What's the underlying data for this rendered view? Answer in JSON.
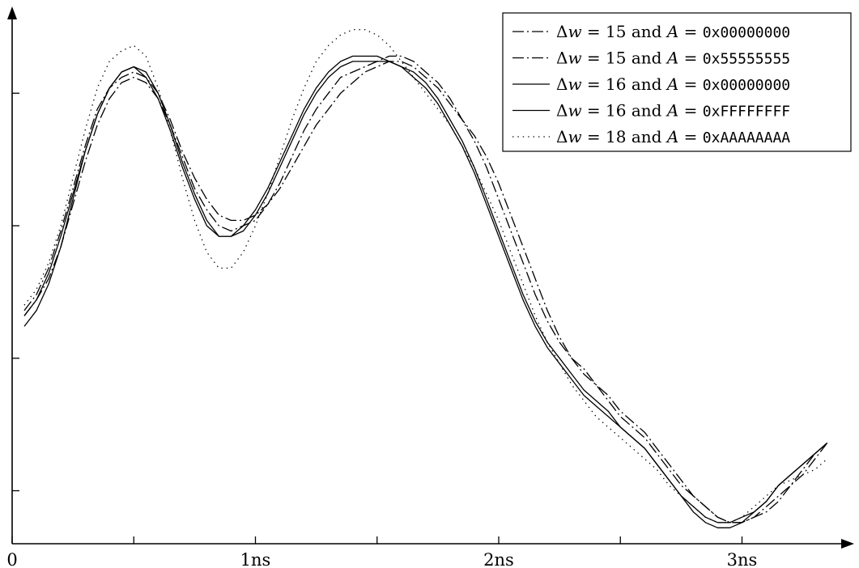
{
  "chart_data": {
    "type": "line",
    "title": "",
    "xlabel": "",
    "ylabel": "",
    "xlim": [
      0,
      3.4
    ],
    "ylim": [
      0,
      1
    ],
    "grid": false,
    "legend_position": "top-right",
    "x_ticks": [
      {
        "value": 0,
        "label": "0"
      },
      {
        "value": 1,
        "label": "1ns"
      },
      {
        "value": 2,
        "label": "2ns"
      },
      {
        "value": 3,
        "label": "3ns"
      }
    ],
    "y_ticks": [
      0.1,
      0.35,
      0.6,
      0.85
    ],
    "series": [
      {
        "name": "Δw = 15 and A = 0x00000000",
        "name_parts": {
          "delta": "Δ",
          "w": "w",
          "eq1": " = 15 and ",
          "a": "A",
          "eq2": " = ",
          "value": "0x00000000"
        },
        "style": "dashdot",
        "x": [
          0.05,
          0.1,
          0.15,
          0.2,
          0.25,
          0.3,
          0.35,
          0.4,
          0.45,
          0.5,
          0.55,
          0.6,
          0.65,
          0.7,
          0.75,
          0.8,
          0.85,
          0.9,
          0.95,
          1.0,
          1.05,
          1.1,
          1.15,
          1.2,
          1.25,
          1.3,
          1.35,
          1.4,
          1.45,
          1.5,
          1.55,
          1.6,
          1.65,
          1.7,
          1.75,
          1.8,
          1.85,
          1.9,
          1.95,
          2.0,
          2.05,
          2.1,
          2.15,
          2.2,
          2.25,
          2.3,
          2.35,
          2.4,
          2.45,
          2.5,
          2.55,
          2.6,
          2.65,
          2.7,
          2.75,
          2.8,
          2.85,
          2.9,
          2.95,
          3.0,
          3.05,
          3.1,
          3.15,
          3.2,
          3.25,
          3.3,
          3.35
        ],
        "y": [
          0.44,
          0.47,
          0.52,
          0.59,
          0.67,
          0.75,
          0.82,
          0.86,
          0.88,
          0.89,
          0.88,
          0.85,
          0.8,
          0.74,
          0.69,
          0.65,
          0.62,
          0.61,
          0.61,
          0.62,
          0.64,
          0.67,
          0.71,
          0.75,
          0.79,
          0.82,
          0.85,
          0.87,
          0.89,
          0.9,
          0.91,
          0.91,
          0.9,
          0.88,
          0.86,
          0.83,
          0.8,
          0.77,
          0.73,
          0.68,
          0.62,
          0.56,
          0.5,
          0.44,
          0.39,
          0.35,
          0.33,
          0.3,
          0.28,
          0.25,
          0.23,
          0.21,
          0.18,
          0.15,
          0.12,
          0.09,
          0.07,
          0.05,
          0.04,
          0.04,
          0.05,
          0.06,
          0.08,
          0.11,
          0.14,
          0.17,
          0.19
        ]
      },
      {
        "name": "Δw = 15 and A = 0x55555555",
        "name_parts": {
          "delta": "Δ",
          "w": "w",
          "eq1": " = 15 and ",
          "a": "A",
          "eq2": " = ",
          "value": "0x55555555"
        },
        "style": "dashdot",
        "x": [
          0.05,
          0.1,
          0.15,
          0.2,
          0.25,
          0.3,
          0.35,
          0.4,
          0.45,
          0.5,
          0.55,
          0.6,
          0.65,
          0.7,
          0.75,
          0.8,
          0.85,
          0.9,
          0.95,
          1.0,
          1.05,
          1.1,
          1.15,
          1.2,
          1.25,
          1.3,
          1.35,
          1.4,
          1.45,
          1.5,
          1.55,
          1.6,
          1.65,
          1.7,
          1.75,
          1.8,
          1.85,
          1.9,
          1.95,
          2.0,
          2.05,
          2.1,
          2.15,
          2.2,
          2.25,
          2.3,
          2.35,
          2.4,
          2.45,
          2.5,
          2.55,
          2.6,
          2.65,
          2.7,
          2.75,
          2.8,
          2.85,
          2.9,
          2.95,
          3.0,
          3.05,
          3.1,
          3.15,
          3.2,
          3.25,
          3.3,
          3.35
        ],
        "y": [
          0.43,
          0.46,
          0.5,
          0.56,
          0.64,
          0.72,
          0.79,
          0.84,
          0.87,
          0.88,
          0.87,
          0.84,
          0.79,
          0.73,
          0.67,
          0.63,
          0.6,
          0.59,
          0.6,
          0.61,
          0.64,
          0.68,
          0.73,
          0.78,
          0.82,
          0.85,
          0.88,
          0.89,
          0.9,
          0.91,
          0.92,
          0.92,
          0.91,
          0.89,
          0.87,
          0.84,
          0.8,
          0.76,
          0.71,
          0.65,
          0.59,
          0.53,
          0.47,
          0.42,
          0.38,
          0.35,
          0.32,
          0.3,
          0.27,
          0.24,
          0.22,
          0.2,
          0.17,
          0.14,
          0.11,
          0.09,
          0.07,
          0.05,
          0.04,
          0.04,
          0.05,
          0.07,
          0.09,
          0.11,
          0.13,
          0.16,
          0.19
        ]
      },
      {
        "name": "Δw = 16 and A = 0x00000000",
        "name_parts": {
          "delta": "Δ",
          "w": "w",
          "eq1": " = 16 and ",
          "a": "A",
          "eq2": " = ",
          "value": "0x00000000"
        },
        "style": "solid",
        "x": [
          0.05,
          0.1,
          0.15,
          0.2,
          0.25,
          0.3,
          0.35,
          0.4,
          0.45,
          0.5,
          0.55,
          0.6,
          0.65,
          0.7,
          0.75,
          0.8,
          0.85,
          0.9,
          0.95,
          1.0,
          1.05,
          1.1,
          1.15,
          1.2,
          1.25,
          1.3,
          1.35,
          1.4,
          1.45,
          1.5,
          1.55,
          1.6,
          1.65,
          1.7,
          1.75,
          1.8,
          1.85,
          1.9,
          1.95,
          2.0,
          2.05,
          2.1,
          2.15,
          2.2,
          2.25,
          2.3,
          2.35,
          2.4,
          2.45,
          2.5,
          2.55,
          2.6,
          2.65,
          2.7,
          2.75,
          2.8,
          2.85,
          2.9,
          2.95,
          3.0,
          3.05,
          3.1,
          3.15,
          3.2,
          3.25,
          3.3,
          3.35
        ],
        "y": [
          0.43,
          0.46,
          0.51,
          0.58,
          0.66,
          0.74,
          0.81,
          0.86,
          0.89,
          0.9,
          0.89,
          0.85,
          0.79,
          0.72,
          0.66,
          0.61,
          0.58,
          0.58,
          0.59,
          0.62,
          0.66,
          0.71,
          0.76,
          0.81,
          0.85,
          0.88,
          0.9,
          0.91,
          0.91,
          0.91,
          0.91,
          0.9,
          0.89,
          0.87,
          0.84,
          0.8,
          0.76,
          0.71,
          0.65,
          0.59,
          0.53,
          0.47,
          0.42,
          0.38,
          0.35,
          0.32,
          0.29,
          0.27,
          0.25,
          0.22,
          0.2,
          0.18,
          0.15,
          0.12,
          0.09,
          0.07,
          0.05,
          0.04,
          0.04,
          0.05,
          0.06,
          0.08,
          0.11,
          0.13,
          0.15,
          0.17,
          0.19
        ]
      },
      {
        "name": "Δw = 16 and A = 0xFFFFFFFF",
        "name_parts": {
          "delta": "Δ",
          "w": "w",
          "eq1": " = 16 and ",
          "a": "A",
          "eq2": " = ",
          "value": "0xFFFFFFFF"
        },
        "style": "solid",
        "x": [
          0.05,
          0.1,
          0.15,
          0.2,
          0.25,
          0.3,
          0.35,
          0.4,
          0.45,
          0.5,
          0.55,
          0.6,
          0.65,
          0.7,
          0.75,
          0.8,
          0.85,
          0.9,
          0.95,
          1.0,
          1.05,
          1.1,
          1.15,
          1.2,
          1.25,
          1.3,
          1.35,
          1.4,
          1.45,
          1.5,
          1.55,
          1.6,
          1.65,
          1.7,
          1.75,
          1.8,
          1.85,
          1.9,
          1.95,
          2.0,
          2.05,
          2.1,
          2.15,
          2.2,
          2.25,
          2.3,
          2.35,
          2.4,
          2.45,
          2.5,
          2.55,
          2.6,
          2.65,
          2.7,
          2.75,
          2.8,
          2.85,
          2.9,
          2.95,
          3.0,
          3.05,
          3.1,
          3.15,
          3.2,
          3.25,
          3.3,
          3.35
        ],
        "y": [
          0.41,
          0.44,
          0.49,
          0.56,
          0.65,
          0.74,
          0.81,
          0.86,
          0.89,
          0.9,
          0.88,
          0.84,
          0.78,
          0.71,
          0.65,
          0.6,
          0.58,
          0.58,
          0.6,
          0.63,
          0.67,
          0.72,
          0.77,
          0.82,
          0.86,
          0.89,
          0.91,
          0.92,
          0.92,
          0.92,
          0.91,
          0.9,
          0.88,
          0.86,
          0.83,
          0.79,
          0.75,
          0.7,
          0.64,
          0.58,
          0.52,
          0.46,
          0.41,
          0.37,
          0.34,
          0.31,
          0.28,
          0.26,
          0.24,
          0.22,
          0.2,
          0.18,
          0.15,
          0.12,
          0.09,
          0.06,
          0.04,
          0.03,
          0.03,
          0.04,
          0.06,
          0.08,
          0.11,
          0.13,
          0.15,
          0.17,
          0.19
        ]
      },
      {
        "name": "Δw = 18 and A = 0xAAAAAAAA",
        "name_parts": {
          "delta": "Δ",
          "w": "w",
          "eq1": " = 18 and ",
          "a": "A",
          "eq2": " = ",
          "value": "0xAAAAAAAA"
        },
        "style": "dotted",
        "x": [
          0.05,
          0.1,
          0.15,
          0.2,
          0.25,
          0.3,
          0.35,
          0.4,
          0.45,
          0.5,
          0.55,
          0.6,
          0.65,
          0.7,
          0.75,
          0.8,
          0.85,
          0.9,
          0.95,
          1.0,
          1.05,
          1.1,
          1.15,
          1.2,
          1.25,
          1.3,
          1.35,
          1.4,
          1.45,
          1.5,
          1.55,
          1.6,
          1.65,
          1.7,
          1.75,
          1.8,
          1.85,
          1.9,
          1.95,
          2.0,
          2.05,
          2.1,
          2.15,
          2.2,
          2.25,
          2.3,
          2.35,
          2.4,
          2.45,
          2.5,
          2.55,
          2.6,
          2.65,
          2.7,
          2.75,
          2.8,
          2.85,
          2.9,
          2.95,
          3.0,
          3.05,
          3.1,
          3.15,
          3.2,
          3.25,
          3.3,
          3.35
        ],
        "y": [
          0.45,
          0.48,
          0.53,
          0.6,
          0.69,
          0.78,
          0.86,
          0.91,
          0.93,
          0.94,
          0.92,
          0.86,
          0.78,
          0.69,
          0.61,
          0.55,
          0.52,
          0.52,
          0.55,
          0.6,
          0.66,
          0.73,
          0.8,
          0.86,
          0.91,
          0.94,
          0.96,
          0.97,
          0.97,
          0.96,
          0.94,
          0.91,
          0.88,
          0.85,
          0.82,
          0.79,
          0.75,
          0.71,
          0.66,
          0.61,
          0.55,
          0.49,
          0.43,
          0.38,
          0.34,
          0.3,
          0.27,
          0.24,
          0.22,
          0.2,
          0.18,
          0.16,
          0.14,
          0.11,
          0.09,
          0.07,
          0.05,
          0.04,
          0.04,
          0.05,
          0.07,
          0.09,
          0.11,
          0.12,
          0.13,
          0.14,
          0.16
        ]
      }
    ]
  }
}
